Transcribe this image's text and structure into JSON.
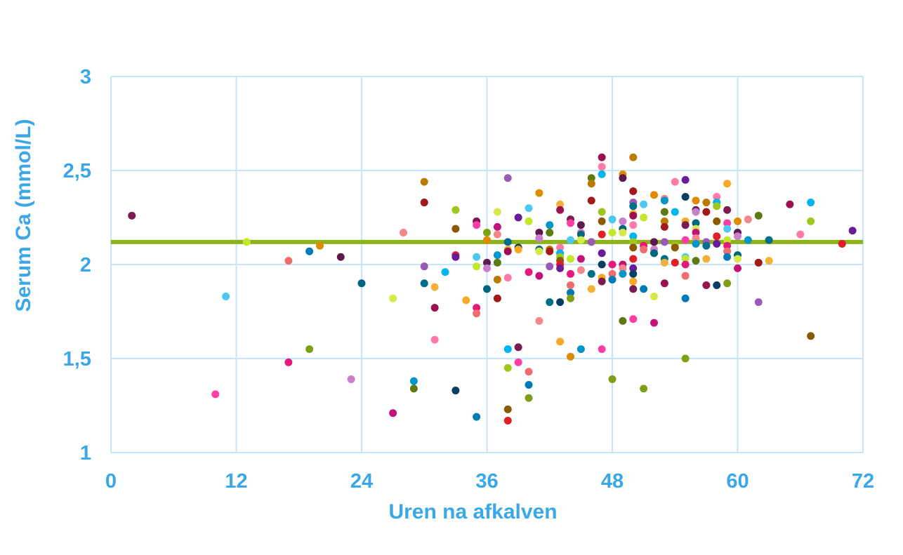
{
  "chart_data": {
    "type": "scatter",
    "title": "",
    "xlabel": "Uren na afkalven",
    "ylabel": "Serum Ca (mmol/L)",
    "xlim": [
      0,
      72
    ],
    "ylim": [
      1,
      3
    ],
    "x_ticks": [
      0,
      12,
      24,
      36,
      48,
      60,
      72
    ],
    "x_tick_labels": [
      "0",
      "12",
      "24",
      "36",
      "48",
      "60",
      "72"
    ],
    "y_ticks": [
      1,
      1.5,
      2,
      2.5,
      3
    ],
    "y_tick_labels": [
      "1",
      "1,5",
      "2",
      "2,5",
      "3"
    ],
    "grid": true,
    "legend": "none",
    "reference_line": {
      "y": 2.12,
      "color": "#8db31b"
    },
    "colors": {
      "axis_text": "#3aa7e8",
      "grid": "#c6e6f7",
      "marker_palette": [
        "#e5197d",
        "#c2137a",
        "#9b1150",
        "#7a1b52",
        "#5c1a4e",
        "#a31919",
        "#e01e25",
        "#f06d6d",
        "#f4878d",
        "#ff7aa5",
        "#ff3ea5",
        "#c97fc9",
        "#9b59b6",
        "#6a1b9a",
        "#007bb8",
        "#0096c7",
        "#00b4ef",
        "#4cc9f0",
        "#006680",
        "#00708a",
        "#0a3d62",
        "#7e9f16",
        "#5e7a12",
        "#9dc91f",
        "#c3e82a",
        "#d7e84a",
        "#f2b138",
        "#f9a825",
        "#e08a00",
        "#bb7a00",
        "#8b5a00"
      ]
    },
    "series": [
      {
        "points": [
          [
            2,
            2.26
          ],
          [
            10,
            1.31
          ],
          [
            11,
            1.83
          ],
          [
            13,
            2.12
          ],
          [
            17,
            1.48
          ],
          [
            17,
            2.02
          ],
          [
            19,
            2.07
          ],
          [
            19,
            1.55
          ],
          [
            20,
            2.1
          ],
          [
            22,
            2.04
          ],
          [
            23,
            1.39
          ],
          [
            24,
            1.9
          ],
          [
            27,
            1.82
          ],
          [
            27,
            1.21
          ],
          [
            28,
            2.17
          ],
          [
            29,
            1.38
          ],
          [
            29,
            1.34
          ],
          [
            30,
            2.44
          ],
          [
            30,
            2.33
          ],
          [
            30,
            1.99
          ],
          [
            30,
            1.9
          ],
          [
            31,
            1.88
          ],
          [
            31,
            1.77
          ],
          [
            31,
            1.6
          ],
          [
            32,
            1.96
          ],
          [
            33,
            2.29
          ],
          [
            33,
            2.19
          ],
          [
            33,
            2.05
          ],
          [
            33,
            2.04
          ],
          [
            33,
            1.33
          ],
          [
            34,
            1.81
          ],
          [
            35,
            2.23
          ],
          [
            35,
            2.21
          ],
          [
            35,
            2.04
          ],
          [
            35,
            1.99
          ],
          [
            35,
            1.77
          ],
          [
            35,
            1.74
          ],
          [
            35,
            1.19
          ],
          [
            36,
            2.17
          ],
          [
            36,
            2.13
          ],
          [
            36,
            2.01
          ],
          [
            36,
            1.98
          ],
          [
            36,
            1.87
          ],
          [
            37,
            2.28
          ],
          [
            37,
            2.2
          ],
          [
            37,
            2.16
          ],
          [
            37,
            2.05
          ],
          [
            37,
            2.01
          ],
          [
            37,
            1.92
          ],
          [
            37,
            1.82
          ],
          [
            38,
            2.46
          ],
          [
            38,
            2.12
          ],
          [
            38,
            2.08
          ],
          [
            38,
            2.07
          ],
          [
            38,
            1.93
          ],
          [
            38,
            1.55
          ],
          [
            38,
            1.45
          ],
          [
            38,
            1.23
          ],
          [
            38,
            1.17
          ],
          [
            39,
            2.25
          ],
          [
            39,
            2.09
          ],
          [
            39,
            2.08
          ],
          [
            39,
            1.56
          ],
          [
            39,
            1.48
          ],
          [
            40,
            2.3
          ],
          [
            40,
            2.23
          ],
          [
            40,
            1.96
          ],
          [
            40,
            1.43
          ],
          [
            40,
            1.36
          ],
          [
            40,
            1.29
          ],
          [
            41,
            2.38
          ],
          [
            41,
            2.17
          ],
          [
            41,
            2.14
          ],
          [
            41,
            2.08
          ],
          [
            41,
            2.07
          ],
          [
            41,
            1.94
          ],
          [
            41,
            1.7
          ],
          [
            42,
            2.21
          ],
          [
            42,
            2.17
          ],
          [
            42,
            2.08
          ],
          [
            42,
            2.07
          ],
          [
            42,
            1.99
          ],
          [
            42,
            1.8
          ],
          [
            43,
            2.32
          ],
          [
            43,
            2.29
          ],
          [
            43,
            2.09
          ],
          [
            43,
            2.06
          ],
          [
            43,
            2.04
          ],
          [
            43,
            2.02
          ],
          [
            43,
            2.0
          ],
          [
            43,
            1.98
          ],
          [
            43,
            1.8
          ],
          [
            43,
            1.59
          ],
          [
            44,
            2.24
          ],
          [
            44,
            2.22
          ],
          [
            44,
            2.13
          ],
          [
            44,
            2.03
          ],
          [
            44,
            1.95
          ],
          [
            44,
            1.89
          ],
          [
            44,
            1.85
          ],
          [
            44,
            1.82
          ],
          [
            44,
            1.51
          ],
          [
            45,
            2.21
          ],
          [
            45,
            2.17
          ],
          [
            45,
            2.16
          ],
          [
            45,
            2.13
          ],
          [
            45,
            2.03
          ],
          [
            45,
            1.97
          ],
          [
            45,
            1.55
          ],
          [
            46,
            2.46
          ],
          [
            46,
            2.43
          ],
          [
            46,
            2.34
          ],
          [
            46,
            2.12
          ],
          [
            46,
            1.95
          ],
          [
            46,
            1.87
          ],
          [
            47,
            2.57
          ],
          [
            47,
            2.52
          ],
          [
            47,
            2.48
          ],
          [
            47,
            2.28
          ],
          [
            47,
            2.23
          ],
          [
            47,
            2.16
          ],
          [
            47,
            2.06
          ],
          [
            47,
            2.0
          ],
          [
            47,
            1.93
          ],
          [
            47,
            1.91
          ],
          [
            47,
            1.55
          ],
          [
            48,
            2.24
          ],
          [
            48,
            2.17
          ],
          [
            48,
            2.0
          ],
          [
            48,
            1.95
          ],
          [
            48,
            1.92
          ],
          [
            48,
            1.39
          ],
          [
            49,
            2.48
          ],
          [
            49,
            2.46
          ],
          [
            49,
            2.23
          ],
          [
            49,
            2.19
          ],
          [
            49,
            2.17
          ],
          [
            49,
            2.0
          ],
          [
            49,
            1.98
          ],
          [
            49,
            1.95
          ],
          [
            49,
            1.7
          ],
          [
            50,
            2.57
          ],
          [
            50,
            2.39
          ],
          [
            50,
            2.33
          ],
          [
            50,
            2.31
          ],
          [
            50,
            2.27
          ],
          [
            50,
            2.26
          ],
          [
            50,
            2.21
          ],
          [
            50,
            2.15
          ],
          [
            50,
            2.12
          ],
          [
            50,
            2.09
          ],
          [
            50,
            2.03
          ],
          [
            50,
            1.98
          ],
          [
            50,
            1.95
          ],
          [
            50,
            1.91
          ],
          [
            50,
            1.87
          ],
          [
            50,
            1.71
          ],
          [
            51,
            2.32
          ],
          [
            51,
            2.25
          ],
          [
            51,
            2.1
          ],
          [
            51,
            2.08
          ],
          [
            51,
            1.87
          ],
          [
            51,
            1.34
          ],
          [
            52,
            2.37
          ],
          [
            52,
            2.12
          ],
          [
            52,
            2.08
          ],
          [
            52,
            2.06
          ],
          [
            52,
            1.83
          ],
          [
            52,
            1.69
          ],
          [
            53,
            2.35
          ],
          [
            53,
            2.34
          ],
          [
            53,
            2.28
          ],
          [
            53,
            2.23
          ],
          [
            53,
            2.2
          ],
          [
            53,
            2.12
          ],
          [
            53,
            2.03
          ],
          [
            53,
            2.01
          ],
          [
            53,
            1.9
          ],
          [
            54,
            2.44
          ],
          [
            54,
            2.28
          ],
          [
            54,
            2.1
          ],
          [
            54,
            2.09
          ],
          [
            54,
            2.01
          ],
          [
            55,
            2.45
          ],
          [
            55,
            2.36
          ],
          [
            55,
            2.23
          ],
          [
            55,
            2.21
          ],
          [
            55,
            2.13
          ],
          [
            55,
            2.04
          ],
          [
            55,
            2.03
          ],
          [
            55,
            2.0
          ],
          [
            55,
            1.94
          ],
          [
            55,
            1.82
          ],
          [
            55,
            1.5
          ],
          [
            56,
            2.34
          ],
          [
            56,
            2.29
          ],
          [
            56,
            2.28
          ],
          [
            56,
            2.22
          ],
          [
            56,
            2.19
          ],
          [
            56,
            2.17
          ],
          [
            56,
            2.14
          ],
          [
            56,
            2.11
          ],
          [
            56,
            2.02
          ],
          [
            57,
            2.33
          ],
          [
            57,
            2.28
          ],
          [
            57,
            2.12
          ],
          [
            57,
            2.1
          ],
          [
            57,
            2.03
          ],
          [
            57,
            1.89
          ],
          [
            58,
            2.36
          ],
          [
            58,
            2.33
          ],
          [
            58,
            2.31
          ],
          [
            58,
            2.23
          ],
          [
            58,
            2.15
          ],
          [
            58,
            2.11
          ],
          [
            58,
            1.89
          ],
          [
            59,
            2.43
          ],
          [
            59,
            2.29
          ],
          [
            59,
            2.22
          ],
          [
            59,
            2.19
          ],
          [
            59,
            2.13
          ],
          [
            59,
            2.1
          ],
          [
            59,
            2.07
          ],
          [
            59,
            2.04
          ],
          [
            59,
            1.9
          ],
          [
            60,
            2.23
          ],
          [
            60,
            2.17
          ],
          [
            60,
            2.15
          ],
          [
            60,
            2.05
          ],
          [
            60,
            2.03
          ],
          [
            60,
            1.98
          ],
          [
            61,
            2.24
          ],
          [
            61,
            2.13
          ],
          [
            62,
            2.26
          ],
          [
            62,
            2.01
          ],
          [
            62,
            2.01
          ],
          [
            62,
            1.8
          ],
          [
            63,
            2.13
          ],
          [
            63,
            2.02
          ],
          [
            65,
            2.32
          ],
          [
            66,
            2.16
          ],
          [
            67,
            2.33
          ],
          [
            67,
            2.23
          ],
          [
            67,
            1.62
          ],
          [
            70,
            2.11
          ],
          [
            71,
            2.18
          ]
        ]
      }
    ]
  }
}
